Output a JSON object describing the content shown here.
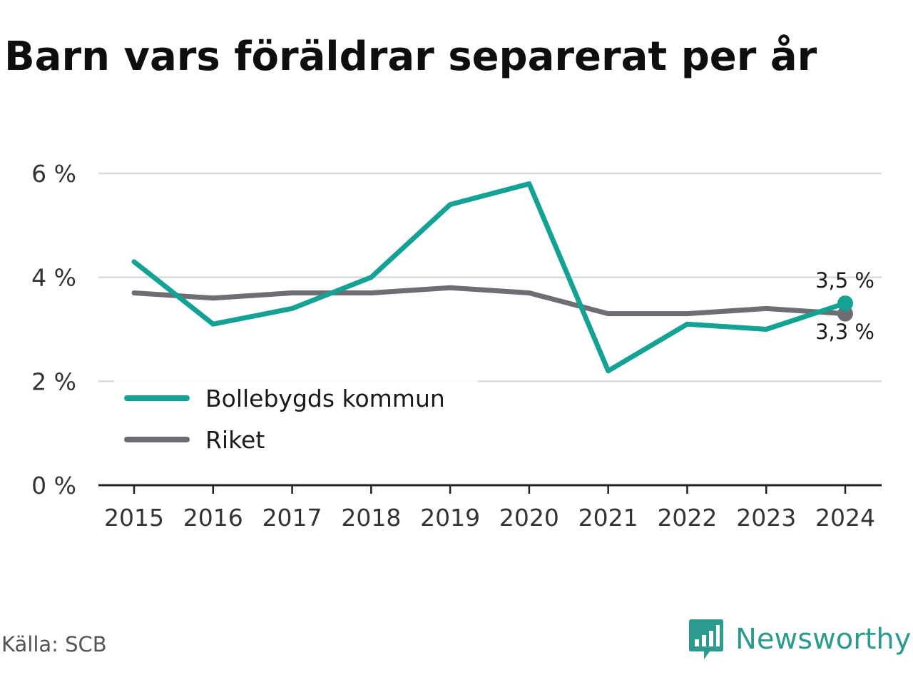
{
  "header": {
    "title": "Barn vars föräldrar separerat per år"
  },
  "footer": {
    "source": "Källa: SCB",
    "brand": "Newsworthy",
    "brand_icon": "newsworthy-bar-chart-speech-icon"
  },
  "colors": {
    "kommun": "#14a294",
    "riket": "#6e6d73",
    "grid": "#d9d9d9",
    "axis": "#222222",
    "brand": "#2c9a8c"
  },
  "chart_data": {
    "type": "line",
    "title": "Barn vars föräldrar separerat per år",
    "xlabel": "",
    "ylabel": "",
    "categories": [
      "2015",
      "2016",
      "2017",
      "2018",
      "2019",
      "2020",
      "2021",
      "2022",
      "2023",
      "2024"
    ],
    "ylim": [
      0,
      6
    ],
    "yticks": [
      0,
      2,
      4,
      6
    ],
    "ytick_labels": [
      "0 %",
      "2 %",
      "4 %",
      "6 %"
    ],
    "grid": true,
    "legend_position": "bottom-left",
    "series": [
      {
        "name": "Bollebygds kommun",
        "color": "#14a294",
        "values": [
          4.3,
          3.1,
          3.4,
          4.0,
          5.4,
          5.8,
          2.2,
          3.1,
          3.0,
          3.5
        ],
        "end_label": "3,5 %"
      },
      {
        "name": "Riket",
        "color": "#6e6d73",
        "values": [
          3.7,
          3.6,
          3.7,
          3.7,
          3.8,
          3.7,
          3.3,
          3.3,
          3.4,
          3.3
        ],
        "end_label": "3,3 %"
      }
    ]
  }
}
